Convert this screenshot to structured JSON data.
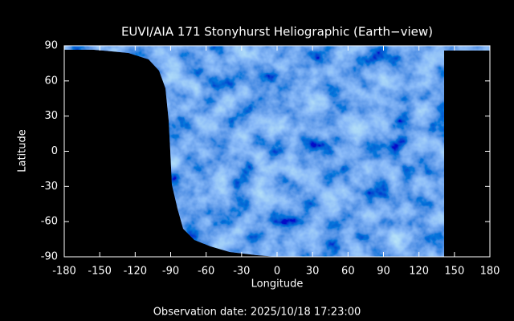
{
  "chart_data": {
    "type": "image",
    "title": "EUVI/AIA 171 Stonyhurst Heliographic (Earth−view)",
    "xlabel": "Longitude",
    "ylabel": "Latitude",
    "footer": "Observation date: 2025/10/18 17:23:00",
    "xlim": [
      -180,
      180
    ],
    "ylim": [
      -90,
      90
    ],
    "xticks": [
      -180,
      -150,
      -120,
      -90,
      -60,
      -30,
      0,
      30,
      60,
      90,
      120,
      150,
      180
    ],
    "yticks": [
      -90,
      -60,
      -30,
      0,
      30,
      60,
      90
    ]
  }
}
